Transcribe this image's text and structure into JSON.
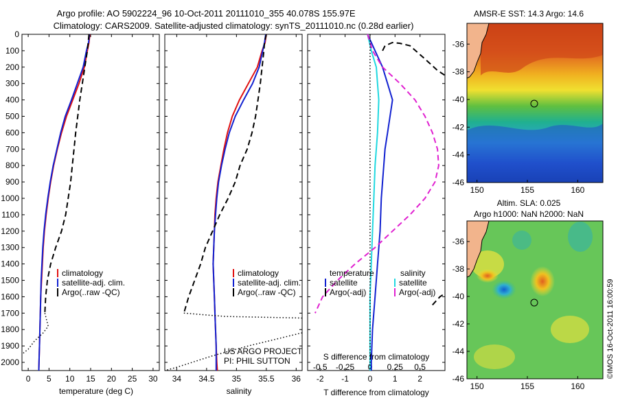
{
  "title_line1": "Argo profile: AO 5902224_96 10-Oct-2011 20111010_355 40.078S 155.97E",
  "title_line2": "Climatology: CARS2009. Satellite-adjusted climatology: synTS_20111010.nc (0.28d earlier)",
  "colors": {
    "climatology": "#e01010",
    "satellite": "#1020d0",
    "argo": "#000000",
    "salinity_sat": "#20d8e0",
    "salinity_argo": "#e020d0"
  },
  "chart_data": [
    {
      "type": "line",
      "id": "temperature",
      "xlabel": "temperature (deg C)",
      "xlim": [
        -1.5,
        31.5
      ],
      "xticks": [
        0,
        5,
        10,
        15,
        20,
        25,
        30
      ],
      "ylim": [
        2050,
        0
      ],
      "yticks": [
        0,
        100,
        200,
        300,
        400,
        500,
        600,
        700,
        800,
        900,
        1000,
        1100,
        1200,
        1300,
        1400,
        1500,
        1600,
        1700,
        1800,
        1900,
        2000
      ],
      "legend": [
        "climatology",
        "satellite-adj. clim.",
        "Argo(..raw -QC)"
      ],
      "series": [
        {
          "name": "climatology",
          "style": "solid",
          "color": "#e01010",
          "points": [
            [
              14.8,
              0
            ],
            [
              14.6,
              50
            ],
            [
              14.2,
              100
            ],
            [
              13.5,
              200
            ],
            [
              12.2,
              300
            ],
            [
              10.7,
              400
            ],
            [
              9.2,
              500
            ],
            [
              8.0,
              600
            ],
            [
              7.0,
              700
            ],
            [
              6.1,
              800
            ],
            [
              5.4,
              900
            ],
            [
              4.8,
              1000
            ],
            [
              4.3,
              1100
            ],
            [
              3.9,
              1200
            ],
            [
              3.6,
              1300
            ],
            [
              3.4,
              1400
            ],
            [
              3.2,
              1500
            ],
            [
              3.0,
              1600
            ],
            [
              2.9,
              1700
            ],
            [
              2.8,
              1800
            ],
            [
              2.7,
              1900
            ],
            [
              2.6,
              2000
            ],
            [
              2.55,
              2050
            ]
          ]
        },
        {
          "name": "satellite-adj. clim.",
          "style": "solid",
          "color": "#1020d0",
          "points": [
            [
              14.7,
              0
            ],
            [
              14.5,
              50
            ],
            [
              14.0,
              100
            ],
            [
              13.2,
              200
            ],
            [
              11.8,
              300
            ],
            [
              10.4,
              400
            ],
            [
              8.9,
              500
            ],
            [
              7.8,
              600
            ],
            [
              6.9,
              700
            ],
            [
              6.0,
              800
            ],
            [
              5.3,
              900
            ],
            [
              4.7,
              1000
            ],
            [
              4.2,
              1100
            ],
            [
              3.8,
              1200
            ],
            [
              3.5,
              1300
            ],
            [
              3.3,
              1400
            ],
            [
              3.1,
              1500
            ],
            [
              3.0,
              1600
            ],
            [
              2.9,
              1700
            ],
            [
              2.8,
              1800
            ],
            [
              2.7,
              1900
            ],
            [
              2.6,
              2000
            ],
            [
              2.55,
              2050
            ]
          ]
        },
        {
          "name": "Argo(..raw -QC)",
          "style": "dash",
          "color": "#000000",
          "points": [
            [
              14.6,
              0
            ],
            [
              14.4,
              50
            ],
            [
              14.2,
              100
            ],
            [
              13.6,
              200
            ],
            [
              13.0,
              300
            ],
            [
              12.4,
              400
            ],
            [
              11.9,
              500
            ],
            [
              11.4,
              600
            ],
            [
              11.0,
              700
            ],
            [
              10.6,
              800
            ],
            [
              10.2,
              900
            ],
            [
              9.6,
              1000
            ],
            [
              9.0,
              1100
            ],
            [
              8.0,
              1200
            ],
            [
              6.6,
              1300
            ],
            [
              5.4,
              1400
            ],
            [
              4.6,
              1500
            ],
            [
              4.2,
              1600
            ],
            [
              4.0,
              1700
            ]
          ]
        },
        {
          "name": "Argo dotted",
          "style": "dot",
          "color": "#000000",
          "points": [
            [
              4.0,
              1700
            ],
            [
              4.8,
              1780
            ],
            [
              3.6,
              1820
            ],
            [
              1.5,
              1870
            ],
            [
              0.0,
              1920
            ],
            [
              -1.5,
              1950
            ]
          ]
        }
      ]
    },
    {
      "type": "line",
      "id": "salinity",
      "xlabel": "salinity",
      "xlim": [
        33.8,
        36.1
      ],
      "xticks": [
        34,
        34.5,
        35,
        35.5,
        36
      ],
      "ylim": [
        2050,
        0
      ],
      "legend": [
        "climatology",
        "satellite-adj. clim.",
        "Argo(..raw -QC)"
      ],
      "annotation": [
        "US ARGO PROJECT",
        "PI: PHIL SUTTON"
      ],
      "series": [
        {
          "name": "climatology",
          "style": "solid",
          "color": "#e01010",
          "points": [
            [
              35.5,
              0
            ],
            [
              35.48,
              50
            ],
            [
              35.43,
              100
            ],
            [
              35.35,
              200
            ],
            [
              35.2,
              300
            ],
            [
              35.05,
              400
            ],
            [
              34.93,
              500
            ],
            [
              34.85,
              600
            ],
            [
              34.79,
              700
            ],
            [
              34.74,
              800
            ],
            [
              34.69,
              900
            ],
            [
              34.66,
              1000
            ],
            [
              34.64,
              1100
            ],
            [
              34.63,
              1200
            ],
            [
              34.62,
              1300
            ],
            [
              34.61,
              1400
            ],
            [
              34.62,
              1500
            ],
            [
              34.63,
              1600
            ],
            [
              34.64,
              1700
            ],
            [
              34.65,
              1800
            ],
            [
              34.66,
              1900
            ],
            [
              34.67,
              2000
            ],
            [
              34.68,
              2050
            ]
          ]
        },
        {
          "name": "satellite-adj. clim.",
          "style": "solid",
          "color": "#1020d0",
          "points": [
            [
              35.49,
              0
            ],
            [
              35.47,
              50
            ],
            [
              35.44,
              100
            ],
            [
              35.38,
              200
            ],
            [
              35.27,
              300
            ],
            [
              35.12,
              400
            ],
            [
              34.98,
              500
            ],
            [
              34.88,
              600
            ],
            [
              34.81,
              700
            ],
            [
              34.75,
              800
            ],
            [
              34.7,
              900
            ],
            [
              34.67,
              1000
            ],
            [
              34.65,
              1100
            ],
            [
              34.63,
              1200
            ],
            [
              34.62,
              1300
            ],
            [
              34.61,
              1400
            ],
            [
              34.62,
              1500
            ],
            [
              34.63,
              1600
            ],
            [
              34.64,
              1700
            ],
            [
              34.65,
              1800
            ],
            [
              34.66,
              1900
            ],
            [
              34.66,
              2000
            ],
            [
              34.66,
              2050
            ]
          ]
        },
        {
          "name": "Argo(..raw -QC)",
          "style": "dash",
          "color": "#000000",
          "points": [
            [
              35.5,
              0
            ],
            [
              35.47,
              50
            ],
            [
              35.46,
              100
            ],
            [
              35.43,
              200
            ],
            [
              35.4,
              300
            ],
            [
              35.36,
              400
            ],
            [
              35.32,
              500
            ],
            [
              35.26,
              600
            ],
            [
              35.18,
              700
            ],
            [
              35.06,
              800
            ],
            [
              34.98,
              900
            ],
            [
              34.86,
              1000
            ],
            [
              34.72,
              1100
            ],
            [
              34.6,
              1200
            ],
            [
              34.48,
              1300
            ],
            [
              34.4,
              1400
            ],
            [
              34.3,
              1500
            ],
            [
              34.2,
              1600
            ],
            [
              34.12,
              1700
            ]
          ]
        },
        {
          "name": "Argo dotted",
          "style": "dot",
          "color": "#000000",
          "points": [
            [
              34.12,
              1700
            ],
            [
              34.8,
              1720
            ],
            [
              36.1,
              1730
            ]
          ]
        },
        {
          "name": "Argo dotted deep",
          "style": "dot",
          "color": "#000000",
          "points": [
            [
              36.1,
              1820
            ],
            [
              35.2,
              1900
            ],
            [
              34.6,
              1960
            ],
            [
              34.0,
              2030
            ],
            [
              33.8,
              2050
            ]
          ]
        }
      ]
    },
    {
      "type": "line",
      "id": "difference",
      "xlabel": "T difference from climatology",
      "xlabel2": "S difference from climatology",
      "xlim": [
        -2.5,
        3.0
      ],
      "xticks": [
        -2,
        -1,
        0,
        1,
        2
      ],
      "xticks2": [
        "-0.5",
        "-0.25",
        "0",
        "0.25",
        "0.5"
      ],
      "xticks2_pos": [
        -2,
        -1,
        0,
        1,
        2
      ],
      "ylim": [
        2050,
        0
      ],
      "legend": {
        "temperature": "temperature",
        "salinity": "salinity",
        "satellite": "satellite",
        "argo_adj": "Argo(-adj)"
      },
      "series": [
        {
          "name": "T satellite",
          "style": "solid",
          "color": "#1020d0",
          "points": [
            [
              -0.1,
              0
            ],
            [
              0.2,
              100
            ],
            [
              0.5,
              200
            ],
            [
              0.7,
              300
            ],
            [
              0.9,
              400
            ],
            [
              0.8,
              500
            ],
            [
              0.7,
              600
            ],
            [
              0.6,
              700
            ],
            [
              0.55,
              800
            ],
            [
              0.5,
              900
            ],
            [
              0.45,
              1000
            ],
            [
              0.4,
              1200
            ],
            [
              0.3,
              1400
            ],
            [
              0.2,
              1600
            ],
            [
              0.1,
              1800
            ],
            [
              0.05,
              2000
            ],
            [
              0.05,
              2050
            ]
          ]
        },
        {
          "name": "S satellite",
          "style": "solid",
          "color": "#20d8e0",
          "points": [
            [
              -0.1,
              0
            ],
            [
              0.05,
              100
            ],
            [
              0.25,
              200
            ],
            [
              0.3,
              300
            ],
            [
              0.35,
              400
            ],
            [
              0.3,
              600
            ],
            [
              0.2,
              800
            ],
            [
              0.15,
              1000
            ],
            [
              0.1,
              1200
            ],
            [
              0.05,
              1400
            ],
            [
              0.0,
              1600
            ],
            [
              0.0,
              1800
            ],
            [
              0.0,
              2050
            ]
          ]
        },
        {
          "name": "T Argo(-adj)",
          "style": "dash",
          "color": "#000000",
          "points": [
            [
              0.5,
              100
            ],
            [
              0.6,
              70
            ],
            [
              0.9,
              50
            ],
            [
              1.2,
              55
            ],
            [
              1.6,
              70
            ],
            [
              2.2,
              150
            ],
            [
              2.7,
              220
            ],
            [
              3.0,
              250
            ]
          ]
        },
        {
          "name": "S Argo(-adj)",
          "style": "dash",
          "color": "#e020d0",
          "points": [
            [
              -0.1,
              0
            ],
            [
              0.1,
              100
            ],
            [
              0.5,
              200
            ],
            [
              1.2,
              300
            ],
            [
              1.8,
              400
            ],
            [
              2.2,
              500
            ],
            [
              2.5,
              600
            ],
            [
              2.7,
              700
            ],
            [
              2.75,
              800
            ],
            [
              2.6,
              900
            ],
            [
              2.2,
              1000
            ],
            [
              1.6,
              1100
            ],
            [
              0.9,
              1200
            ],
            [
              0.2,
              1300
            ],
            [
              -0.6,
              1400
            ],
            [
              -1.3,
              1500
            ],
            [
              -1.9,
              1600
            ],
            [
              -2.2,
              1700
            ]
          ]
        },
        {
          "name": "T Argo deep",
          "style": "dash",
          "color": "#000000",
          "points": [
            [
              2.5,
              1650
            ],
            [
              2.8,
              1600
            ],
            [
              3.0,
              1580
            ]
          ]
        },
        {
          "name": "zero reference",
          "style": "dot",
          "color": "#000000",
          "points": [
            [
              0,
              0
            ],
            [
              0,
              2050
            ]
          ]
        }
      ]
    },
    {
      "type": "heatmap",
      "id": "sst_map",
      "title": "AMSR-E SST: 14.3 Argo: 14.6",
      "xticks": [
        150,
        155,
        160
      ],
      "yticks": [
        -36,
        -38,
        -40,
        -42,
        -44,
        -46
      ],
      "xlim": [
        149,
        162.5
      ],
      "ylim": [
        -46,
        -34.5
      ],
      "marker": [
        155.97,
        -40.078
      ]
    },
    {
      "type": "heatmap",
      "id": "sla_map",
      "title": "Altim. SLA: 0.025",
      "subtitle": "Argo h1000: NaN h2000: NaN",
      "xticks": [
        150,
        155,
        160
      ],
      "yticks": [
        -36,
        -38,
        -40,
        -42,
        -44,
        -46
      ],
      "xlim": [
        149,
        162.5
      ],
      "ylim": [
        -46,
        -34.5
      ],
      "marker": [
        155.97,
        -40.078
      ]
    }
  ],
  "copyright": "©IMOS 16-Oct-2011 16:00:59"
}
